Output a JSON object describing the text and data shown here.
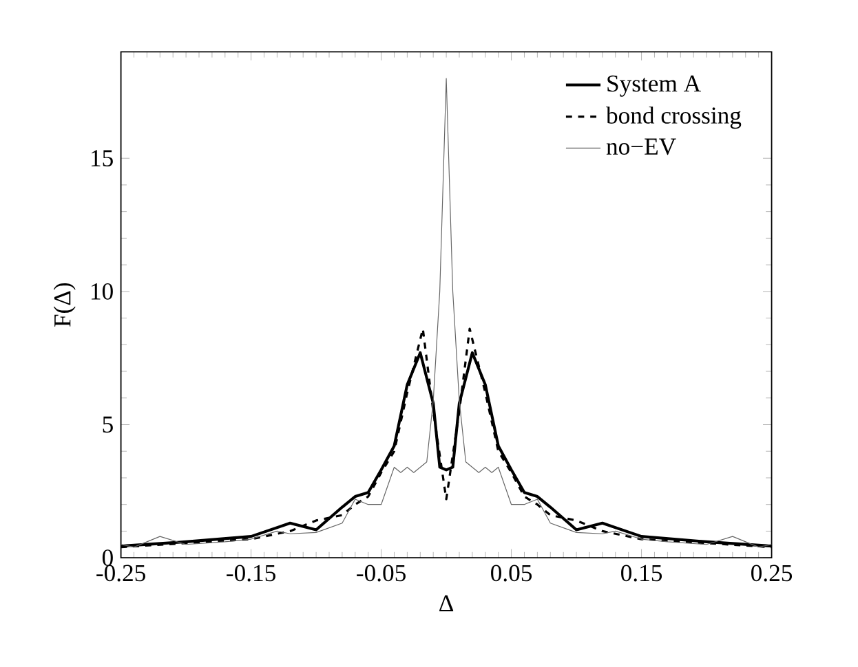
{
  "chart_data": {
    "type": "line",
    "xlabel": "Δ",
    "ylabel": "F(Δ)",
    "xlim": [
      -0.25,
      0.25
    ],
    "ylim": [
      0,
      19
    ],
    "xticks": [
      -0.25,
      -0.15,
      -0.05,
      0.05,
      0.15,
      0.25
    ],
    "yticks": [
      0,
      5,
      10,
      15
    ],
    "legend": "top right",
    "grid": false,
    "marker": "none",
    "series": [
      {
        "name": "System A",
        "color": "#000000",
        "line_style": "solid",
        "x": [
          -0.25,
          -0.2,
          -0.15,
          -0.12,
          -0.1,
          -0.08,
          -0.07,
          -0.06,
          -0.05,
          -0.04,
          -0.03,
          -0.02,
          -0.01,
          -0.005,
          0,
          0.005,
          0.01,
          0.02,
          0.03,
          0.04,
          0.05,
          0.06,
          0.07,
          0.08,
          0.1,
          0.12,
          0.15,
          0.2,
          0.25
        ],
        "values": [
          0.44,
          0.6,
          0.8,
          1.3,
          1.05,
          1.9,
          2.3,
          2.45,
          3.3,
          4.2,
          6.5,
          7.7,
          5.8,
          3.4,
          3.3,
          3.4,
          5.8,
          7.7,
          6.5,
          4.2,
          3.3,
          2.45,
          2.3,
          1.9,
          1.05,
          1.3,
          0.8,
          0.6,
          0.44
        ]
      },
      {
        "name": "bond crossing",
        "color": "#000000",
        "line_style": "dashed",
        "x": [
          -0.25,
          -0.2,
          -0.15,
          -0.12,
          -0.1,
          -0.08,
          -0.07,
          -0.06,
          -0.05,
          -0.04,
          -0.03,
          -0.018,
          -0.01,
          0,
          0.01,
          0.018,
          0.03,
          0.04,
          0.05,
          0.06,
          0.07,
          0.08,
          0.1,
          0.12,
          0.15,
          0.2,
          0.25
        ],
        "values": [
          0.4,
          0.55,
          0.7,
          1.0,
          1.4,
          1.6,
          2.0,
          2.3,
          3.2,
          4.0,
          6.2,
          8.6,
          5.5,
          2.2,
          5.5,
          8.6,
          6.2,
          4.0,
          3.2,
          2.3,
          2.0,
          1.6,
          1.4,
          1.0,
          0.7,
          0.55,
          0.4
        ]
      },
      {
        "name": "no−EV",
        "color": "#666666",
        "line_style": "solid",
        "x": [
          -0.25,
          -0.24,
          -0.22,
          -0.2,
          -0.17,
          -0.15,
          -0.13,
          -0.12,
          -0.1,
          -0.08,
          -0.07,
          -0.06,
          -0.05,
          -0.04,
          -0.035,
          -0.03,
          -0.025,
          -0.02,
          -0.015,
          -0.01,
          -0.005,
          0,
          0.005,
          0.01,
          0.015,
          0.02,
          0.025,
          0.03,
          0.035,
          0.04,
          0.05,
          0.06,
          0.07,
          0.08,
          0.1,
          0.12,
          0.13,
          0.15,
          0.17,
          0.2,
          0.22,
          0.24,
          0.25
        ],
        "values": [
          0.5,
          0.4,
          0.8,
          0.5,
          0.6,
          0.7,
          1.0,
          0.9,
          0.95,
          1.3,
          2.2,
          2.0,
          2.0,
          3.4,
          3.2,
          3.4,
          3.2,
          3.4,
          3.6,
          5.9,
          10,
          18,
          10,
          5.9,
          3.6,
          3.4,
          3.2,
          3.4,
          3.2,
          3.4,
          2.0,
          2.0,
          2.2,
          1.3,
          0.95,
          0.9,
          1.0,
          0.7,
          0.6,
          0.5,
          0.8,
          0.4,
          0.5
        ]
      }
    ]
  }
}
